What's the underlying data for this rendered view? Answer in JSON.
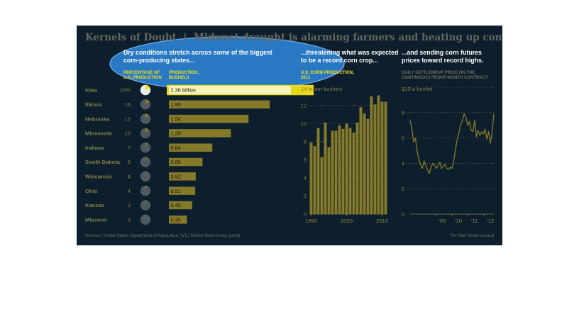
{
  "title_left": "Kernels of Doubt",
  "title_sep": "|",
  "title_right": "Midwest drought is alarming farmers and heating up commodities markets",
  "section1": {
    "headline_line1": "Dry conditions stretch across some of the biggest",
    "headline_line2": "corn-producing states...",
    "col_pct_line1": "PERCENTAGE OF",
    "col_pct_line2": "U.S. PRODUCTION",
    "col_prod_line1": "PRODUCTION,",
    "col_prod_line2": "BUSHELS"
  },
  "section2": {
    "headline_line1": "...threatening what was expected",
    "headline_line2": "to be a record corn crop...",
    "sub_line1": "U.S. CORN PRODUCTION,",
    "sub_line2": "2011",
    "unit_label": "14 billion bushels"
  },
  "section3": {
    "headline_line1": "...and sending corn futures",
    "headline_line2": "prices toward record highs.",
    "sub_line1": "DAILY SETTLEMENT PRICE ON THE",
    "sub_line2": "CONTINUOUS FRONT-MONTH CONTRACT",
    "unit_label": "$10 a bushel"
  },
  "footer": {
    "sources": "Sources: United States Department of Agriculture; WSJ Market Data Group (price)",
    "credit": "The Wall Street Journal"
  },
  "colors": {
    "background": "#0d1f2c",
    "bar_olive": "#857a2a",
    "text_olive": "#857e45",
    "highlight_yellow": "#f2e11a",
    "highlight_blue": "#2b7fcf",
    "title_gray": "#66665e"
  },
  "chart_data": [
    {
      "type": "bar",
      "orientation": "horizontal",
      "categories": [
        "Iowa",
        "Illinois",
        "Nebraska",
        "Minnesota",
        "Indiana",
        "South Dakota",
        "Wisconsin",
        "Ohio",
        "Kansas",
        "Missouri"
      ],
      "percent_labels": [
        "19%",
        "16",
        "12",
        "10",
        "7",
        "5",
        "4",
        "4",
        "3",
        "3"
      ],
      "percent_values": [
        19,
        16,
        12,
        10,
        7,
        5,
        4,
        4,
        3,
        3
      ],
      "series": [
        {
          "values": [
            2.36,
            1.95,
            1.54,
            1.2,
            0.84,
            0.65,
            0.52,
            0.51,
            0.45,
            0.35
          ],
          "labels": [
            "2.36 billion",
            "1.95",
            "1.54",
            "1.20",
            "0.84",
            "0.65",
            "0.52",
            "0.51",
            "0.45",
            "0.35"
          ]
        }
      ],
      "xlim": [
        0,
        2.36
      ]
    },
    {
      "type": "bar",
      "x_start": 1990,
      "values": [
        7.9,
        7.5,
        9.5,
        6.3,
        10.1,
        7.4,
        9.2,
        9.2,
        9.8,
        9.4,
        10.0,
        9.5,
        9.0,
        10.1,
        11.8,
        11.1,
        10.5,
        13.0,
        12.1,
        13.1,
        12.4,
        12.4
      ],
      "xticks": [
        "1990",
        "2000",
        "2010"
      ],
      "yticks": [
        "0",
        "2",
        "4",
        "6",
        "8",
        "10",
        "12"
      ],
      "ylim": [
        0,
        14
      ],
      "grid": "horizontal dotted"
    },
    {
      "type": "line",
      "x_start": 2007.4,
      "x_end": 2012.6,
      "values": [
        7.4,
        6.7,
        5.7,
        6.0,
        5.0,
        4.3,
        3.9,
        3.6,
        4.2,
        3.8,
        3.5,
        3.2,
        3.7,
        4.0,
        3.9,
        3.6,
        3.8,
        4.1,
        3.6,
        3.8,
        3.9,
        3.6,
        3.5,
        3.7,
        3.6,
        4.2,
        5.1,
        5.9,
        6.4,
        7.1,
        7.4,
        7.9,
        7.6,
        7.0,
        7.3,
        6.6,
        6.5,
        7.4,
        6.1,
        6.6,
        6.2,
        6.5,
        6.3,
        6.7,
        5.9,
        6.5,
        5.6,
        6.4,
        7.9
      ],
      "xticks": [
        "'09",
        "'10",
        "'11",
        "'12"
      ],
      "xtick_positions": [
        2009,
        2010,
        2011,
        2012
      ],
      "yticks": [
        "0",
        "2",
        "4",
        "6",
        "8"
      ],
      "ylim": [
        0,
        10
      ],
      "grid": "horizontal dotted"
    }
  ]
}
